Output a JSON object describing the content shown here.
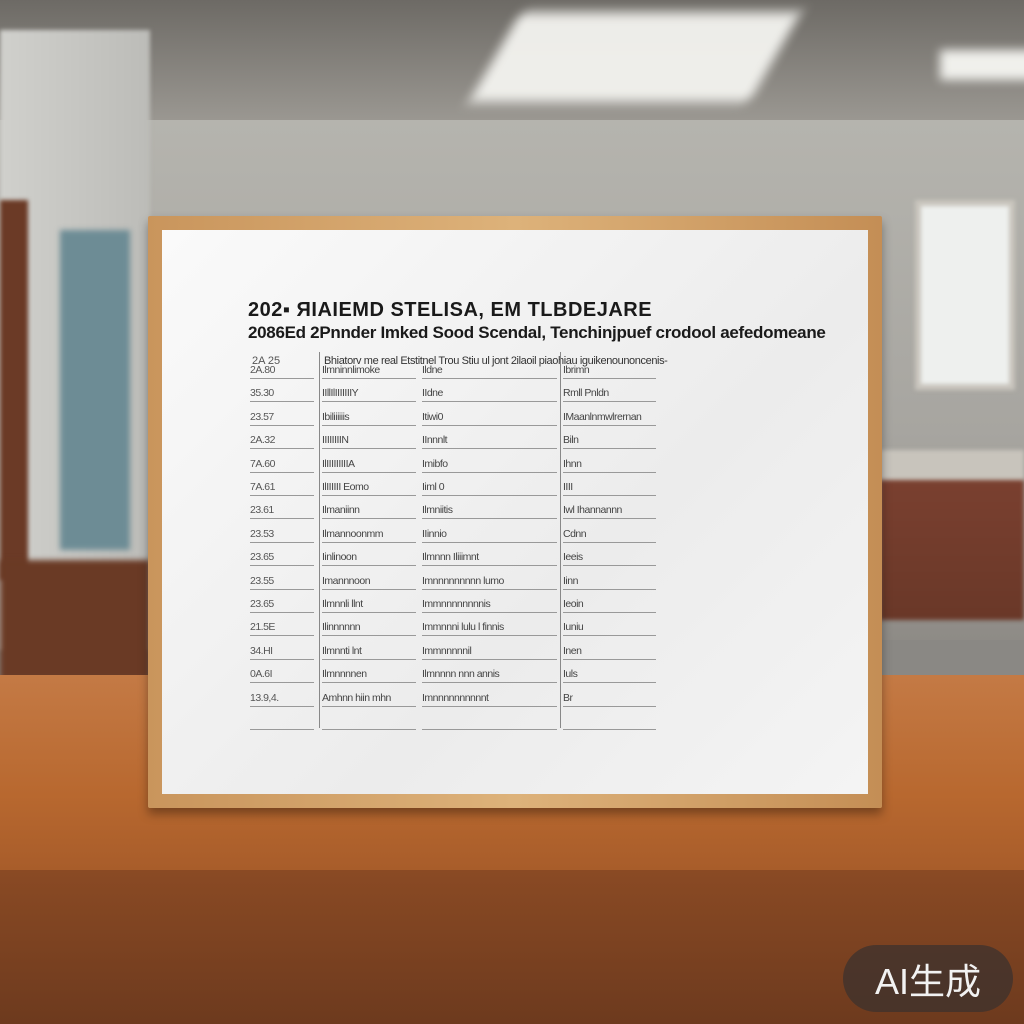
{
  "board": {
    "title_line1": "202▪ ЯIAIEMD STELISA, EM TLBDEJARE",
    "title_line2": "2086Ed 2Pnnder Imked Sood Scendal, Tenchinjpuef crodool aefedomeane",
    "header_left": "2A 25",
    "header_right": "Bhiatorv me real Etstitnel Trou Stiu ul jont 2ilaoil piaohiau iguikenounoncenis-",
    "rows": [
      {
        "c1": "2A.80",
        "c2": "Ilmninnlimoke",
        "c3": "Ildne",
        "c4": "Ibrimn"
      },
      {
        "c1": "35.30",
        "c2": "IIllIlIIIIIIIY",
        "c3": "IIdne",
        "c4": "Rmll Pnldn"
      },
      {
        "c1": "23.57",
        "c2": "Ibiliiiiiis",
        "c3": "Itiwi0",
        "c4": "IMaanlnmwlrernan"
      },
      {
        "c1": "2A.32",
        "c2": "IIIIIIIIN",
        "c3": "IInnnlt",
        "c4": "Biln"
      },
      {
        "c1": "7A.60",
        "c2": "IlIIIIIIIIIA",
        "c3": "Imibfo",
        "c4": "Ihnn"
      },
      {
        "c1": "7A.61",
        "c2": "IlIIIIII Eomo",
        "c3": "Iiml 0",
        "c4": "IIII"
      },
      {
        "c1": "23.61",
        "c2": "Ilmaniinn",
        "c3": "Ilmniitis",
        "c4": "Iwl Ihannannn"
      },
      {
        "c1": "23.53",
        "c2": "Ilmannoonmm",
        "c3": "IIinnio",
        "c4": "Cdnn"
      },
      {
        "c1": "23.65",
        "c2": "Iinlinoon",
        "c3": "Ilmnnn Iliiimnt",
        "c4": "Ieeis"
      },
      {
        "c1": "23.55",
        "c2": "Imannnoon",
        "c3": "Imnnnnnnnnn lumo",
        "c4": "Iinn"
      },
      {
        "c1": "23.65",
        "c2": "Ilmnnli llnt",
        "c3": "Immnnnnnnnnis",
        "c4": "Ieoin"
      },
      {
        "c1": "21.5E",
        "c2": "Ilinnnnnn",
        "c3": "Immnnni lulu l finnis",
        "c4": "Iuniu"
      },
      {
        "c1": "34.HI",
        "c2": "Ilmnnti lnt",
        "c3": "Immnnnnnil",
        "c4": "Inen"
      },
      {
        "c1": "0A.6I",
        "c2": "Ilmnnnnen",
        "c3": "Ilmnnnn nnn annis",
        "c4": "Iuls"
      },
      {
        "c1": "13.9,4.",
        "c2": "Amhnn hiin mhn",
        "c3": "Imnnnnnnnnnnt",
        "c4": "Br"
      },
      {
        "c1": "",
        "c2": "",
        "c3": "",
        "c4": ""
      }
    ]
  },
  "watermark": "AI生成",
  "colors": {
    "frame": "#d4a46b",
    "board": "#f2f2f2",
    "desk": "#b8682f",
    "watermark_bg": "#3c322d"
  }
}
